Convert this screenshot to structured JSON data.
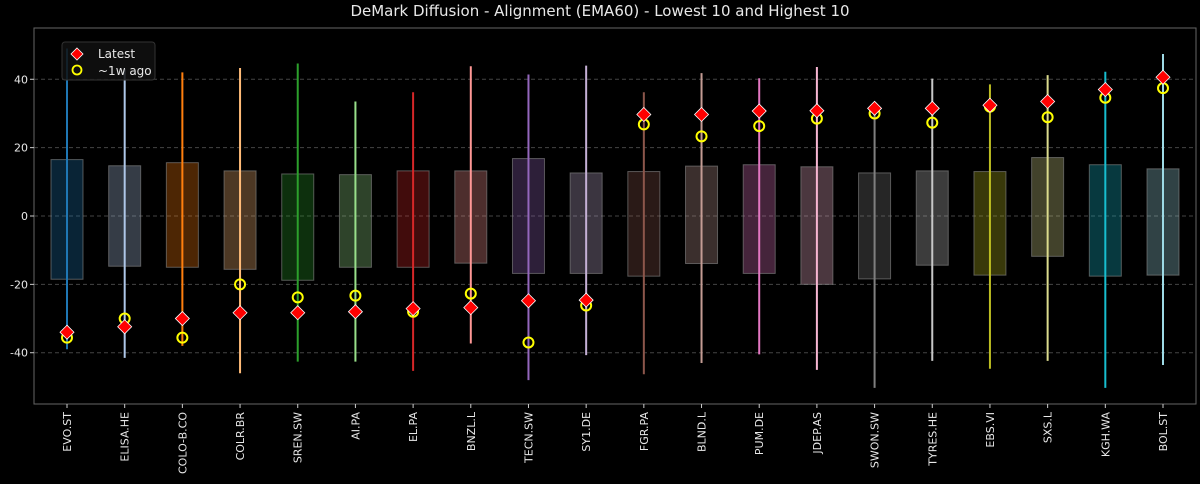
{
  "chart_data": {
    "type": "box-range",
    "title": "DeMark Diffusion - Alignment (EMA60) - Lowest 10 and Highest 10",
    "xlabel": "",
    "ylabel": "",
    "ylim": [
      -55,
      55
    ],
    "yticks": [
      -40,
      -20,
      0,
      20,
      40
    ],
    "grid": true,
    "legend": {
      "placement": "top-left",
      "entries": [
        {
          "label": "Latest",
          "marker": "red diamond",
          "color": "#ff0000"
        },
        {
          "label": "~1w ago",
          "marker": "yellow hollow circle",
          "color": "#ffff00"
        }
      ]
    },
    "categories": [
      "EVO.ST",
      "ELISA.HE",
      "COLO-B.CO",
      "COLR.BR",
      "SREN.SW",
      "AI.PA",
      "EL.PA",
      "BNZL.L",
      "TECN.SW",
      "SY1.DE",
      "FGR.PA",
      "BLND.L",
      "PUM.DE",
      "JDEP.AS",
      "SWON.SW",
      "TYRES.HE",
      "EBS.VI",
      "SXS.L",
      "KGH.WA",
      "BOL.ST"
    ],
    "colors": [
      "#1f77b4",
      "#aec7e8",
      "#ff7f0e",
      "#ffbb78",
      "#2ca02c",
      "#98df8a",
      "#d62728",
      "#ff9896",
      "#9467bd",
      "#c5b0d5",
      "#8c564b",
      "#c49c94",
      "#e377c2",
      "#f7b6d2",
      "#7f7f7f",
      "#c7c7c7",
      "#bcbd22",
      "#dbdb8d",
      "#17becf",
      "#9edae5"
    ],
    "range_max": [
      49,
      43,
      42,
      43.3,
      44.6,
      33.5,
      36.2,
      43.8,
      41.4,
      44,
      36.2,
      41.8,
      40.3,
      43.6,
      31,
      40.2,
      38.5,
      41.2,
      42.2,
      47.4
    ],
    "range_min": [
      -39,
      -41.5,
      -38,
      -46,
      -42.6,
      -42.6,
      -45.3,
      -37.3,
      -48,
      -40.7,
      -46.3,
      -43,
      -40.5,
      -45,
      -50.3,
      -42.4,
      -44.7,
      -42.4,
      -50.3,
      -43.6
    ],
    "box_upper": [
      16.5,
      14.7,
      15.6,
      13.2,
      12.3,
      12.1,
      13.2,
      13.2,
      16.8,
      12.6,
      13,
      14.6,
      15,
      14.4,
      12.6,
      13.2,
      13,
      17.1,
      15,
      13.8
    ],
    "box_lower": [
      -18.5,
      -14.7,
      -15,
      -15.6,
      -18.8,
      -15,
      -15,
      -13.8,
      -16.8,
      -16.8,
      -17.6,
      -13.9,
      -16.8,
      -20,
      -18.4,
      -14.4,
      -17.3,
      -11.8,
      -17.6,
      -17.3
    ],
    "series": [
      {
        "name": "Latest",
        "values": [
          -34,
          -32.4,
          -30,
          -28.3,
          -28.3,
          -28,
          -27.1,
          -26.8,
          -24.8,
          -24.6,
          29.7,
          29.7,
          30.7,
          30.8,
          31.5,
          31.5,
          32.4,
          33.5,
          37,
          40.6
        ]
      },
      {
        "name": "~1w ago",
        "values": [
          -35.6,
          -30,
          -35.6,
          -20,
          -23.8,
          -23.3,
          -28,
          -22.7,
          -37,
          -26.2,
          26.8,
          23.3,
          26.3,
          28.5,
          30,
          27.3,
          32,
          28.9,
          34.6,
          37.4
        ]
      }
    ]
  }
}
